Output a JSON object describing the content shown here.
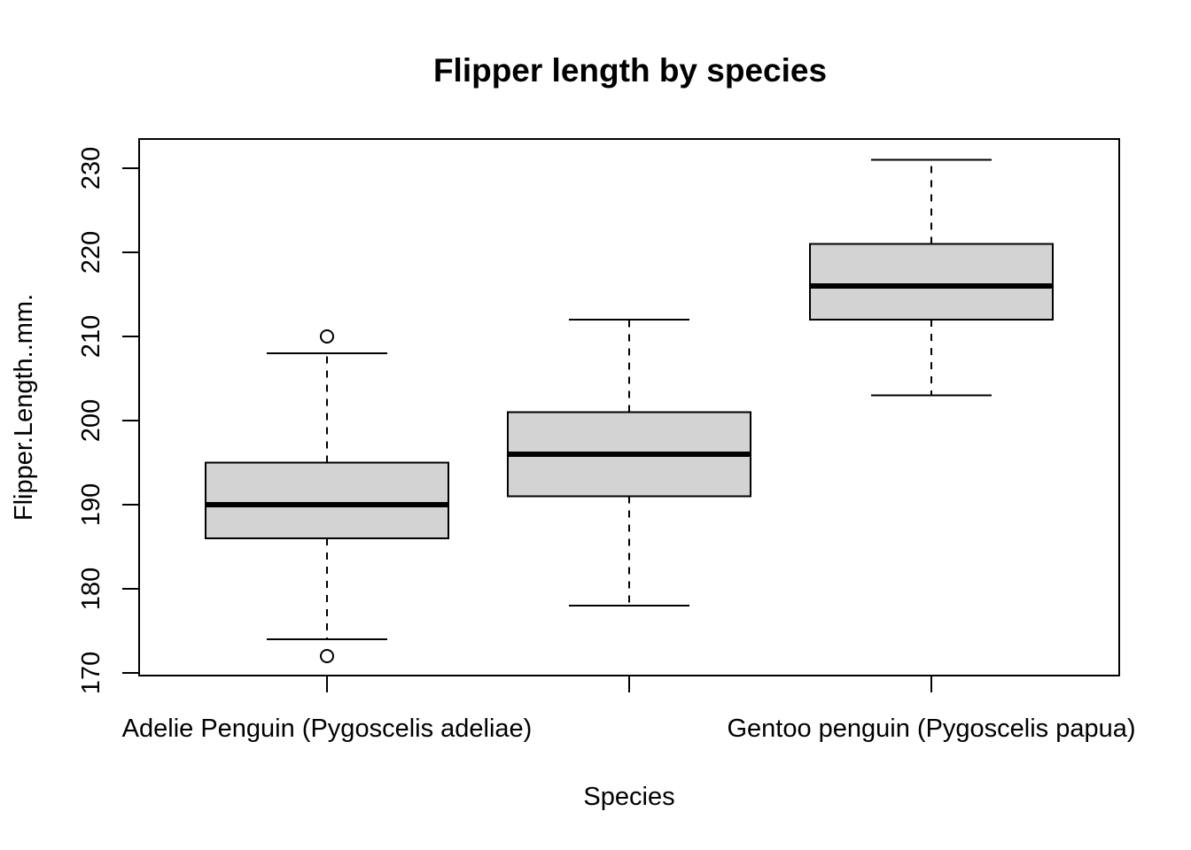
{
  "chart_data": {
    "type": "boxplot",
    "title": "Flipper length by species",
    "xlabel": "Species",
    "ylabel": "Flipper.Length..mm.",
    "ylim": [
      170,
      230
    ],
    "yticks": [
      170,
      180,
      190,
      200,
      210,
      220,
      230
    ],
    "grid": false,
    "legend": "none",
    "categories": [
      "Adelie Penguin (Pygoscelis adeliae)",
      "",
      "Gentoo penguin (Pygoscelis papua)"
    ],
    "boxes": [
      {
        "whisker_low": 174,
        "q1": 186,
        "median": 190,
        "q3": 195,
        "whisker_high": 208,
        "outliers": [
          172,
          210
        ]
      },
      {
        "whisker_low": 178,
        "q1": 191,
        "median": 196,
        "q3": 201,
        "whisker_high": 212,
        "outliers": []
      },
      {
        "whisker_low": 203,
        "q1": 212,
        "median": 216,
        "q3": 221,
        "whisker_high": 231,
        "outliers": []
      }
    ],
    "colors": {
      "box_fill": "#d3d3d3",
      "stroke": "#000000"
    }
  }
}
